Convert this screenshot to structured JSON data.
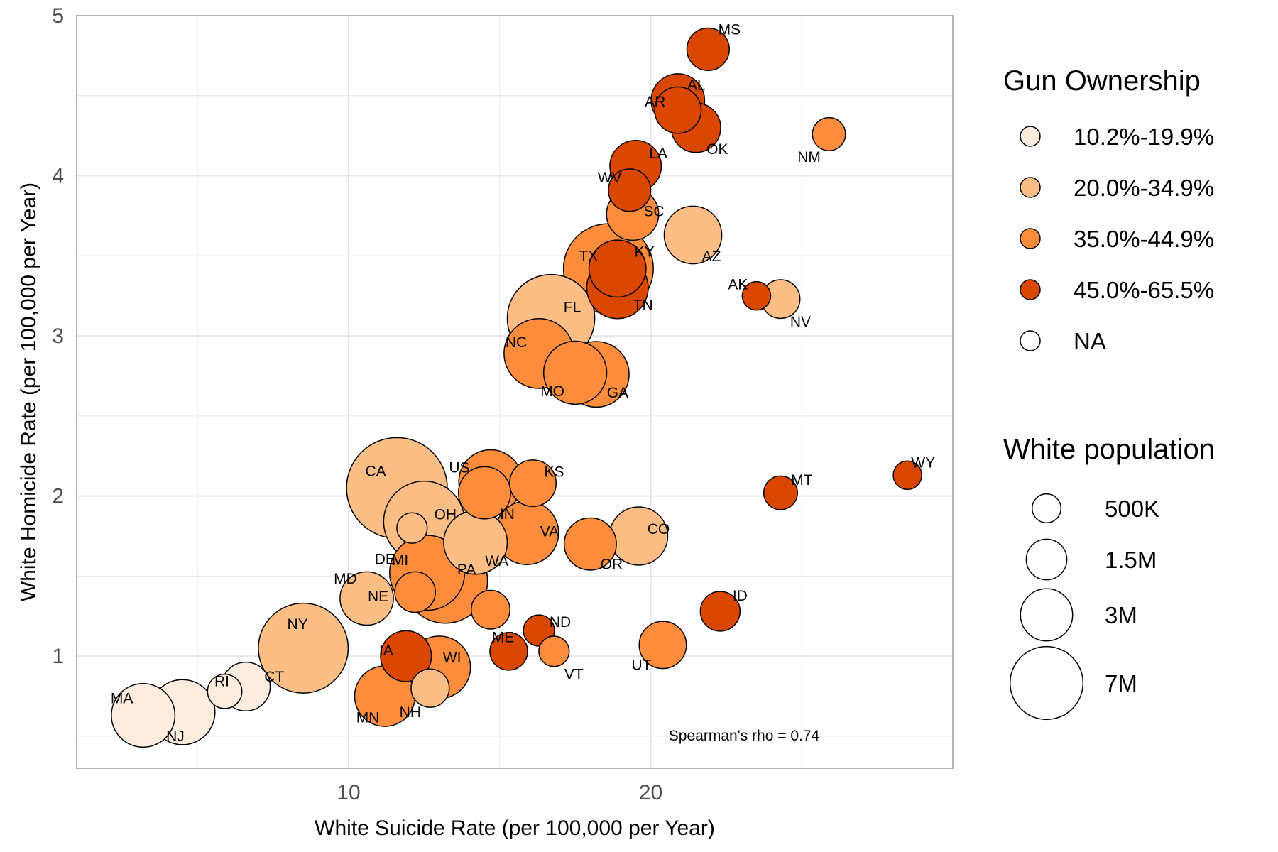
{
  "chart_data": {
    "type": "scatter",
    "title": "",
    "xlabel": "White Suicide Rate (per 100,000 per Year)",
    "ylabel": "White Homicide Rate (per 100,000 per Year)",
    "xlim": [
      1,
      30
    ],
    "ylim": [
      0.3,
      5
    ],
    "x_ticks": [
      10,
      20
    ],
    "y_ticks": [
      1,
      2,
      3,
      4,
      5
    ],
    "grid": true,
    "annotation": "Spearman's rho =  0.74",
    "color_legend": {
      "title": "Gun Ownership",
      "placement": "right",
      "entries": [
        {
          "label": "10.2%-19.9%",
          "color": "#feeddf"
        },
        {
          "label": "20.0%-34.9%",
          "color": "#fdbe85"
        },
        {
          "label": "35.0%-44.9%",
          "color": "#fd8d3c"
        },
        {
          "label": "45.0%-65.5%",
          "color": "#d94701"
        },
        {
          "label": "NA",
          "color": "#ffffff"
        }
      ]
    },
    "size_legend": {
      "title": "White population",
      "placement": "right",
      "entries": [
        {
          "label": "500K",
          "value": 500000
        },
        {
          "label": "1.5M",
          "value": 1500000
        },
        {
          "label": "3M",
          "value": 3000000
        },
        {
          "label": "7M",
          "value": 7000000
        }
      ]
    },
    "points": [
      {
        "label": "MS",
        "x": 21.9,
        "y": 4.79,
        "pop": 1700000,
        "group": 3
      },
      {
        "label": "AL",
        "x": 20.9,
        "y": 4.47,
        "pop": 3200000,
        "group": 3
      },
      {
        "label": "AR",
        "x": 20.9,
        "y": 4.41,
        "pop": 2200000,
        "group": 3
      },
      {
        "label": "OK",
        "x": 21.5,
        "y": 4.3,
        "pop": 2600000,
        "group": 3
      },
      {
        "label": "NM",
        "x": 25.9,
        "y": 4.26,
        "pop": 800000,
        "group": 2
      },
      {
        "label": "LA",
        "x": 19.5,
        "y": 4.06,
        "pop": 2900000,
        "group": 3
      },
      {
        "label": "WV",
        "x": 19.3,
        "y": 3.91,
        "pop": 1700000,
        "group": 3
      },
      {
        "label": "SC",
        "x": 19.4,
        "y": 3.76,
        "pop": 3000000,
        "group": 2
      },
      {
        "label": "AZ",
        "x": 21.4,
        "y": 3.63,
        "pop": 3900000,
        "group": 1
      },
      {
        "label": "KY",
        "x": 18.9,
        "y": 3.42,
        "pop": 3800000,
        "group": 3
      },
      {
        "label": "TX",
        "x": 18.6,
        "y": 3.42,
        "pop": 11500000,
        "group": 2
      },
      {
        "label": "TN",
        "x": 18.9,
        "y": 3.3,
        "pop": 4600000,
        "group": 3
      },
      {
        "label": "AK",
        "x": 23.5,
        "y": 3.25,
        "pop": 480000,
        "group": 3
      },
      {
        "label": "NV",
        "x": 24.3,
        "y": 3.23,
        "pop": 1300000,
        "group": 1
      },
      {
        "label": "FL",
        "x": 16.7,
        "y": 3.11,
        "pop": 10800000,
        "group": 1
      },
      {
        "label": "NC",
        "x": 16.3,
        "y": 2.89,
        "pop": 6300000,
        "group": 2
      },
      {
        "label": "MO",
        "x": 17.5,
        "y": 2.77,
        "pop": 4900000,
        "group": 2
      },
      {
        "label": "GA",
        "x": 18.2,
        "y": 2.76,
        "pop": 5400000,
        "group": 2
      },
      {
        "label": "WY",
        "x": 28.5,
        "y": 2.13,
        "pop": 480000,
        "group": 3
      },
      {
        "label": "US",
        "x": 14.7,
        "y": 2.09,
        "pop": 5000000,
        "group": 2
      },
      {
        "label": "KS",
        "x": 16.1,
        "y": 2.08,
        "pop": 2200000,
        "group": 2
      },
      {
        "label": "CA",
        "x": 11.6,
        "y": 2.05,
        "pop": 15000000,
        "group": 1
      },
      {
        "label": "MT",
        "x": 24.3,
        "y": 2.02,
        "pop": 850000,
        "group": 3
      },
      {
        "label": "IN",
        "x": 14.5,
        "y": 2.02,
        "pop": 3000000,
        "group": 2
      },
      {
        "label": "OH",
        "x": 12.5,
        "y": 1.84,
        "pop": 9000000,
        "group": 1
      },
      {
        "label": "DE",
        "x": 12.1,
        "y": 1.8,
        "pop": 600000,
        "group": 1
      },
      {
        "label": "VA",
        "x": 15.9,
        "y": 1.77,
        "pop": 5000000,
        "group": 2
      },
      {
        "label": "CO",
        "x": 19.6,
        "y": 1.75,
        "pop": 4000000,
        "group": 1
      },
      {
        "label": "WA",
        "x": 14.2,
        "y": 1.71,
        "pop": 5000000,
        "group": 1
      },
      {
        "label": "OR",
        "x": 18.0,
        "y": 1.7,
        "pop": 3000000,
        "group": 2
      },
      {
        "label": "MI",
        "x": 12.6,
        "y": 1.52,
        "pop": 7500000,
        "group": 2
      },
      {
        "label": "PA",
        "x": 13.2,
        "y": 1.47,
        "pop": 10000000,
        "group": 2
      },
      {
        "label": "NE",
        "x": 12.2,
        "y": 1.4,
        "pop": 1500000,
        "group": 2
      },
      {
        "label": "MD",
        "x": 10.6,
        "y": 1.36,
        "pop": 3200000,
        "group": 1
      },
      {
        "label": "ID",
        "x": 22.3,
        "y": 1.28,
        "pop": 1400000,
        "group": 3
      },
      {
        "label": "PA2",
        "x": 14.7,
        "y": 1.29,
        "pop": 1300000,
        "group": 2,
        "hidden_label": true
      },
      {
        "label": "ND",
        "x": 16.3,
        "y": 1.16,
        "pop": 650000,
        "group": 3
      },
      {
        "label": "UT",
        "x": 20.4,
        "y": 1.07,
        "pop": 2300000,
        "group": 2
      },
      {
        "label": "NY",
        "x": 8.5,
        "y": 1.05,
        "pop": 11500000,
        "group": 1
      },
      {
        "label": "VT",
        "x": 16.8,
        "y": 1.03,
        "pop": 600000,
        "group": 2
      },
      {
        "label": "ME",
        "x": 15.3,
        "y": 1.03,
        "pop": 1200000,
        "group": 3
      },
      {
        "label": "IA",
        "x": 11.9,
        "y": 1.0,
        "pop": 2800000,
        "group": 3
      },
      {
        "label": "WI",
        "x": 13.0,
        "y": 0.93,
        "pop": 4800000,
        "group": 2
      },
      {
        "label": "NH",
        "x": 12.7,
        "y": 0.8,
        "pop": 1250000,
        "group": 1
      },
      {
        "label": "MN",
        "x": 11.2,
        "y": 0.75,
        "pop": 4400000,
        "group": 2
      },
      {
        "label": "CT",
        "x": 6.6,
        "y": 0.81,
        "pop": 2500000,
        "group": 0
      },
      {
        "label": "RI",
        "x": 5.9,
        "y": 0.78,
        "pop": 900000,
        "group": 0
      },
      {
        "label": "MA",
        "x": 3.2,
        "y": 0.63,
        "pop": 5000000,
        "group": 0
      },
      {
        "label": "NJ",
        "x": 4.5,
        "y": 0.65,
        "pop": 5300000,
        "group": 0
      }
    ]
  }
}
